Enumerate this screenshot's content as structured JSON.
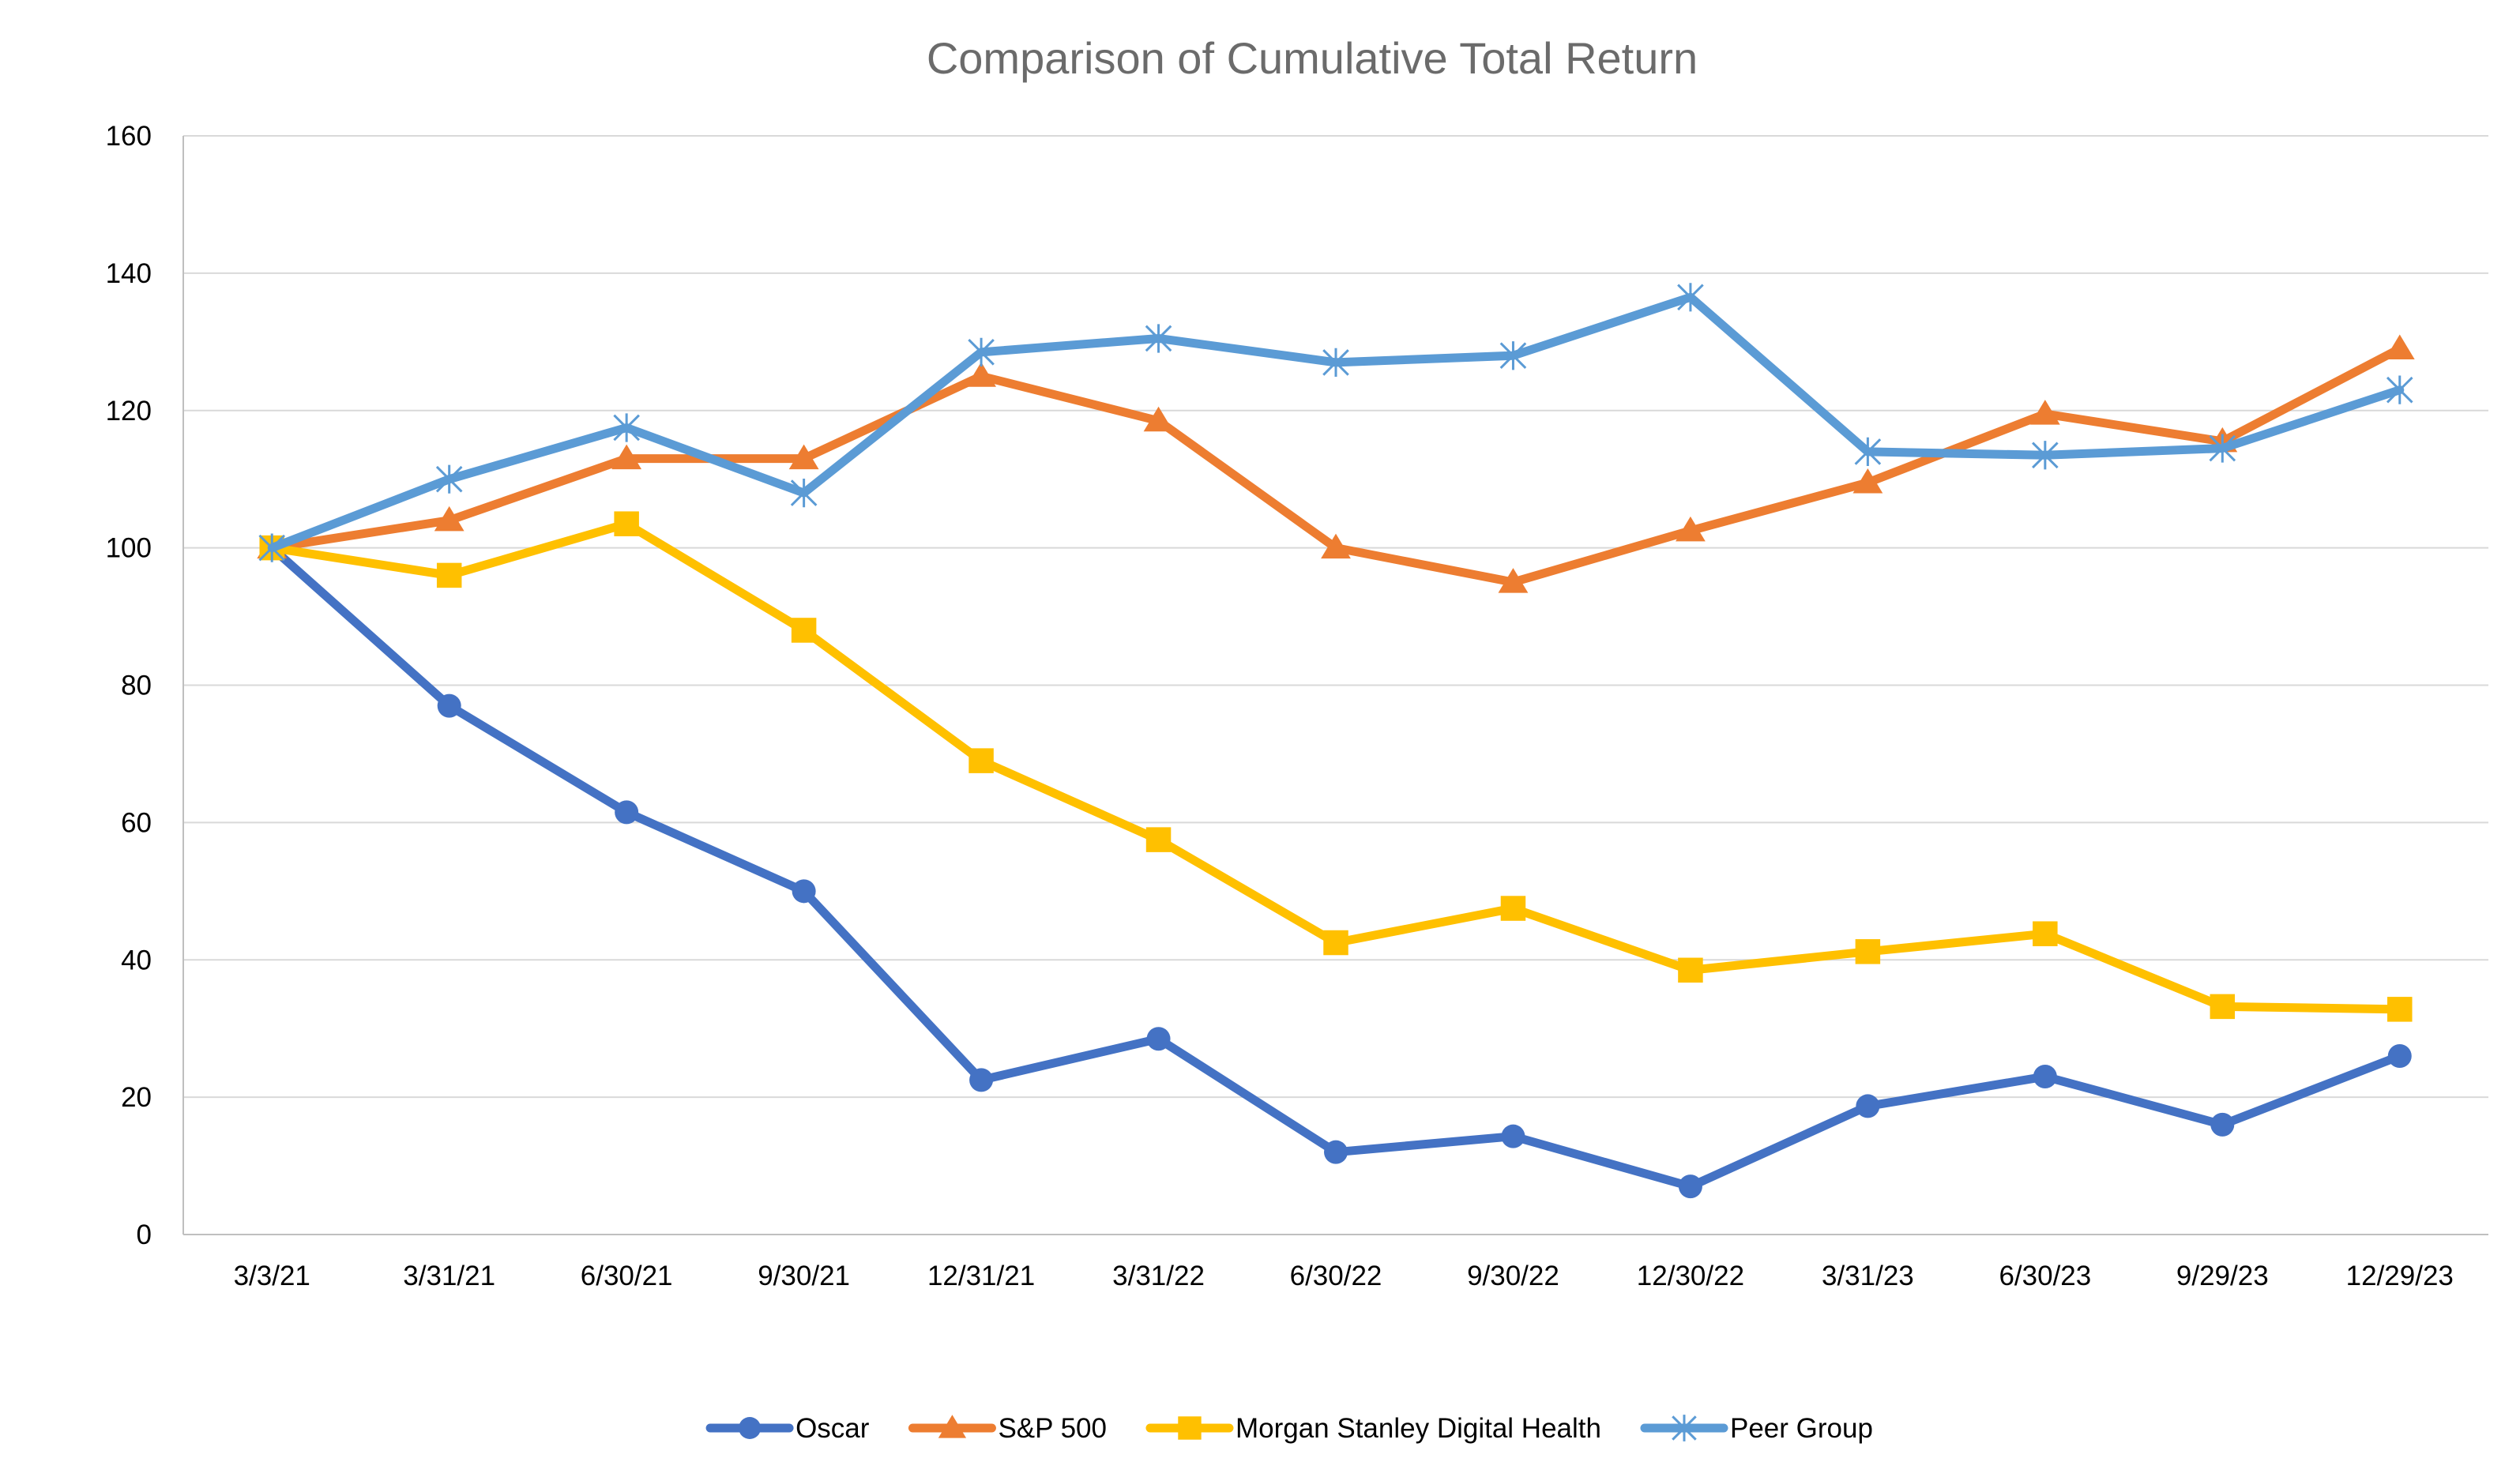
{
  "chart_data": {
    "type": "line",
    "title": "Comparison of Cumulative Total Return",
    "xlabel": "",
    "ylabel": "",
    "categories": [
      "3/3/21",
      "3/31/21",
      "6/30/21",
      "9/30/21",
      "12/31/21",
      "3/31/22",
      "6/30/22",
      "9/30/22",
      "12/30/22",
      "3/31/23",
      "6/30/23",
      "9/29/23",
      "12/29/23"
    ],
    "ylim": [
      0,
      160
    ],
    "yticks": [
      0,
      20,
      40,
      60,
      80,
      100,
      120,
      140,
      160
    ],
    "y_tick_labels": [
      "0",
      "20",
      "40",
      "60",
      "80",
      "100",
      "120",
      "140",
      "160"
    ],
    "grid": "horizontal",
    "legend_position": "bottom",
    "series": [
      {
        "name": "Oscar",
        "color": "#4472C4",
        "marker": "circle",
        "values": [
          100,
          77,
          61.5,
          50,
          22.5,
          28.5,
          12,
          14.3,
          7,
          18.7,
          23,
          16,
          26
        ]
      },
      {
        "name": "S&P 500",
        "color": "#ED7D31",
        "marker": "triangle",
        "values": [
          100,
          104,
          113,
          113,
          125,
          118.5,
          100,
          95,
          102.5,
          109.5,
          119.5,
          115.5,
          129
        ]
      },
      {
        "name": "Morgan Stanley Digital Health",
        "color": "#FFC000",
        "marker": "square",
        "values": [
          100,
          96,
          103.5,
          88,
          69,
          57.5,
          42.5,
          47.5,
          38.5,
          41.2,
          43.8,
          33.2,
          32.8
        ]
      },
      {
        "name": "Peer Group",
        "color": "#5B9BD5",
        "marker": "star",
        "values": [
          100,
          110,
          117.5,
          108,
          128.5,
          130.5,
          127,
          128,
          136.5,
          114,
          113.5,
          114.5,
          123
        ]
      }
    ]
  },
  "colors": {
    "gridline": "#d9d9d9",
    "axis": "#bfbfbf",
    "title": "#6b6b6b",
    "text": "#000000"
  }
}
